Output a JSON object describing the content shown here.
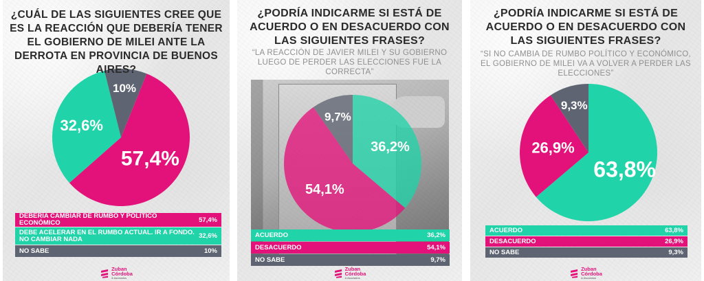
{
  "colors": {
    "magenta": "#e3127a",
    "teal": "#20d3a8",
    "gray": "#5e6472",
    "title": "#2a2a2a",
    "subtitle": "#8f8f8f"
  },
  "panels": [
    {
      "title": "¿Cuál de las siguientes cree que es la reacción que debería tener el gobierno de Milei ante la derrota en provincia de Buenos Aires?",
      "subtitle": "",
      "legend": [
        {
          "label": "Debería cambiar de rumbo y político económico",
          "value": "57,4%"
        },
        {
          "label": "Debe acelerar en el rumbo actual. Ir a fondo. No cambiar nada",
          "value": "32,6%"
        },
        {
          "label": "No sabe",
          "value": "10%"
        }
      ],
      "logo": {
        "line1": "Zuban",
        "line2": "Córdoba",
        "line3": "& Asociados"
      }
    },
    {
      "title": "¿Podría indicarme si está de acuerdo o en desacuerdo con las siguientes frases?",
      "subtitle": "“La reacción de Javier Milei y su gobierno luego de perder las elecciones fue la correcta”",
      "legend": [
        {
          "label": "Acuerdo",
          "value": "36,2%"
        },
        {
          "label": "Desacuerdo",
          "value": "54,1%"
        },
        {
          "label": "No sabe",
          "value": "9,7%"
        }
      ],
      "logo": {
        "line1": "Zuban",
        "line2": "Córdoba",
        "line3": "& Asociados"
      }
    },
    {
      "title": "¿Podría indicarme si está de acuerdo o en desacuerdo con las siguientes frases?",
      "subtitle": "“Si no cambia de rumbo político y económico, el gobierno de Milei va a volver a perder las elecciones”",
      "legend": [
        {
          "label": "Acuerdo",
          "value": "63,8%"
        },
        {
          "label": "Desacuerdo",
          "value": "26,9%"
        },
        {
          "label": "No sabe",
          "value": "9,3%"
        }
      ],
      "logo": {
        "line1": "Zuban",
        "line2": "Córdoba",
        "line3": "& Asociados"
      }
    }
  ],
  "chart_data": [
    {
      "type": "pie",
      "title": "¿Cuál de las siguientes cree que es la reacción que debería tener el gobierno de Milei ante la derrota en provincia de Buenos Aires?",
      "slices": [
        {
          "label": "Debería cambiar de rumbo y político económico",
          "value": 57.4,
          "display": "57,4%",
          "color": "#e3127a"
        },
        {
          "label": "Debe acelerar en el rumbo actual. Ir a fondo. No cambiar nada",
          "value": 32.6,
          "display": "32,6%",
          "color": "#20d3a8"
        },
        {
          "label": "No sabe",
          "value": 10,
          "display": "10%",
          "color": "#5e6472"
        }
      ]
    },
    {
      "type": "pie",
      "title": "¿Podría indicarme si está de acuerdo o en desacuerdo con las siguientes frases?",
      "subtitle": "“La reacción de Javier Milei y su gobierno luego de perder las elecciones fue la correcta”",
      "slices": [
        {
          "label": "Acuerdo",
          "value": 36.2,
          "display": "36,2%",
          "color": "#20d3a8"
        },
        {
          "label": "Desacuerdo",
          "value": 54.1,
          "display": "54,1%",
          "color": "#e3127a"
        },
        {
          "label": "No sabe",
          "value": 9.7,
          "display": "9,7%",
          "color": "#5e6472"
        }
      ]
    },
    {
      "type": "pie",
      "title": "¿Podría indicarme si está de acuerdo o en desacuerdo con las siguientes frases?",
      "subtitle": "“Si no cambia de rumbo político y económico, el gobierno de Milei va a volver a perder las elecciones”",
      "slices": [
        {
          "label": "Acuerdo",
          "value": 63.8,
          "display": "63,8%",
          "color": "#20d3a8"
        },
        {
          "label": "Desacuerdo",
          "value": 26.9,
          "display": "26,9%",
          "color": "#e3127a"
        },
        {
          "label": "No sabe",
          "value": 9.3,
          "display": "9,3%",
          "color": "#5e6472"
        }
      ]
    }
  ]
}
